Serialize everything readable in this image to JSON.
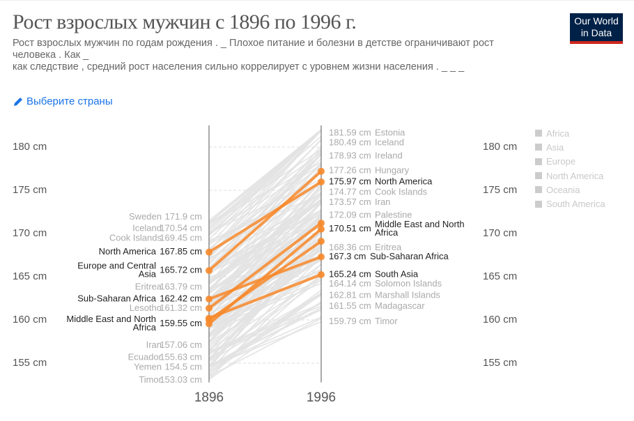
{
  "header": {
    "title": "Рост взрослых мужчин с 1896 по 1996 г.",
    "subtitle_lines": [
      "Рост взрослых мужчин по годам рождения . _ Плохое питание и болезни в детстве ограничивают рост",
      "человека . Как _",
      "как следствие , средний рост населения сильно коррелирует с уровнем жизни населения . _ _ _"
    ],
    "logo_line1": "Our World",
    "logo_line2": "in Data"
  },
  "controls": {
    "select_countries": "Выберите страны",
    "select_icon": "pencil-icon"
  },
  "colors": {
    "highlight": "#f7892b",
    "background_line": "#e0e0e0",
    "logo_bg": "#002147",
    "logo_accent": "#ce261e",
    "link": "#1a73e8"
  },
  "legend": {
    "items": [
      "Africa",
      "Asia",
      "Europe",
      "North America",
      "Oceania",
      "South America"
    ]
  },
  "chart_data": {
    "type": "slope",
    "x": [
      "1896",
      "1996"
    ],
    "ylim": [
      153,
      182.5
    ],
    "yticks": [
      155,
      160,
      165,
      170,
      175,
      180
    ],
    "ytick_labels": [
      "155 cm",
      "160 cm",
      "165 cm",
      "170 cm",
      "175 cm",
      "180 cm"
    ],
    "unit": "cm",
    "highlighted_series": [
      {
        "name": "North America",
        "values": [
          167.85,
          175.97
        ],
        "label_start": true,
        "label_end": true
      },
      {
        "name": "Europe and Central Asia",
        "values": [
          165.72,
          177.2
        ],
        "label_start": true,
        "label_end": false
      },
      {
        "name": "Sub-Saharan Africa",
        "values": [
          162.42,
          167.3
        ],
        "label_start": true,
        "label_end": true
      },
      {
        "name": "Middle East and North Africa",
        "values": [
          159.55,
          170.51
        ],
        "label_start": true,
        "label_end": true
      },
      {
        "name": "",
        "values": [
          161.35,
          171.2
        ],
        "label_start": false,
        "label_end": false
      },
      {
        "name": "",
        "values": [
          160.0,
          169.1
        ],
        "label_start": false,
        "label_end": false
      },
      {
        "name": "South Asia",
        "values": [
          160.2,
          165.24
        ],
        "label_start": false,
        "label_end": true
      }
    ],
    "start_labels_background": [
      {
        "name": "Sweden",
        "value": 171.9,
        "text": "171.9 cm"
      },
      {
        "name": "Iceland",
        "value": 170.54,
        "text": "170.54 cm"
      },
      {
        "name": "Cook Islands",
        "value": 169.45,
        "text": "169.45 cm"
      },
      {
        "name": "Eritrea",
        "value": 163.79,
        "text": "163.79 cm"
      },
      {
        "name": "Lesotho",
        "value": 161.32,
        "text": "161.32 cm"
      },
      {
        "name": "Iran",
        "value": 157.06,
        "text": "157.06 cm"
      },
      {
        "name": "Ecuador",
        "value": 155.63,
        "text": "155.63 cm"
      },
      {
        "name": "Yemen",
        "value": 154.5,
        "text": "154.5 cm"
      },
      {
        "name": "Timor",
        "value": 153.03,
        "text": "153.03 cm"
      }
    ],
    "start_labels_highlight": [
      {
        "name": "North America",
        "value": 167.85,
        "text": "167.85 cm"
      },
      {
        "name": "Europe and Central Asia",
        "value": 165.72,
        "text": "165.72 cm"
      },
      {
        "name": "Sub-Saharan Africa",
        "value": 162.42,
        "text": "162.42 cm"
      },
      {
        "name": "Middle East and North Africa",
        "value": 159.55,
        "text": "159.55 cm"
      }
    ],
    "end_labels_background": [
      {
        "name": "Estonia",
        "value": 181.59,
        "text": "181.59 cm"
      },
      {
        "name": "Iceland",
        "value": 180.49,
        "text": "180.49 cm"
      },
      {
        "name": "Ireland",
        "value": 178.93,
        "text": "178.93 cm"
      },
      {
        "name": "Hungary",
        "value": 177.26,
        "text": "177.26 cm"
      },
      {
        "name": "Cook Islands",
        "value": 174.77,
        "text": "174.77 cm"
      },
      {
        "name": "Iran",
        "value": 173.57,
        "text": "173.57 cm"
      },
      {
        "name": "Palestine",
        "value": 172.09,
        "text": "172.09 cm"
      },
      {
        "name": "Eritrea",
        "value": 168.36,
        "text": "168.36 cm"
      },
      {
        "name": "Solomon Islands",
        "value": 164.14,
        "text": "164.14 cm"
      },
      {
        "name": "Marshall Islands",
        "value": 162.81,
        "text": "162.81 cm"
      },
      {
        "name": "Madagascar",
        "value": 161.55,
        "text": "161.55 cm"
      },
      {
        "name": "Timor",
        "value": 159.79,
        "text": "159.79 cm"
      }
    ],
    "end_labels_highlight": [
      {
        "name": "North America",
        "value": 175.97,
        "text": "175.97 cm"
      },
      {
        "name": "Middle East and North Africa",
        "value": 170.51,
        "text": "170.51 cm"
      },
      {
        "name": "Sub-Saharan Africa",
        "value": 167.3,
        "text": "167.3 cm"
      },
      {
        "name": "South Asia",
        "value": 165.24,
        "text": "165.24 cm"
      }
    ]
  }
}
